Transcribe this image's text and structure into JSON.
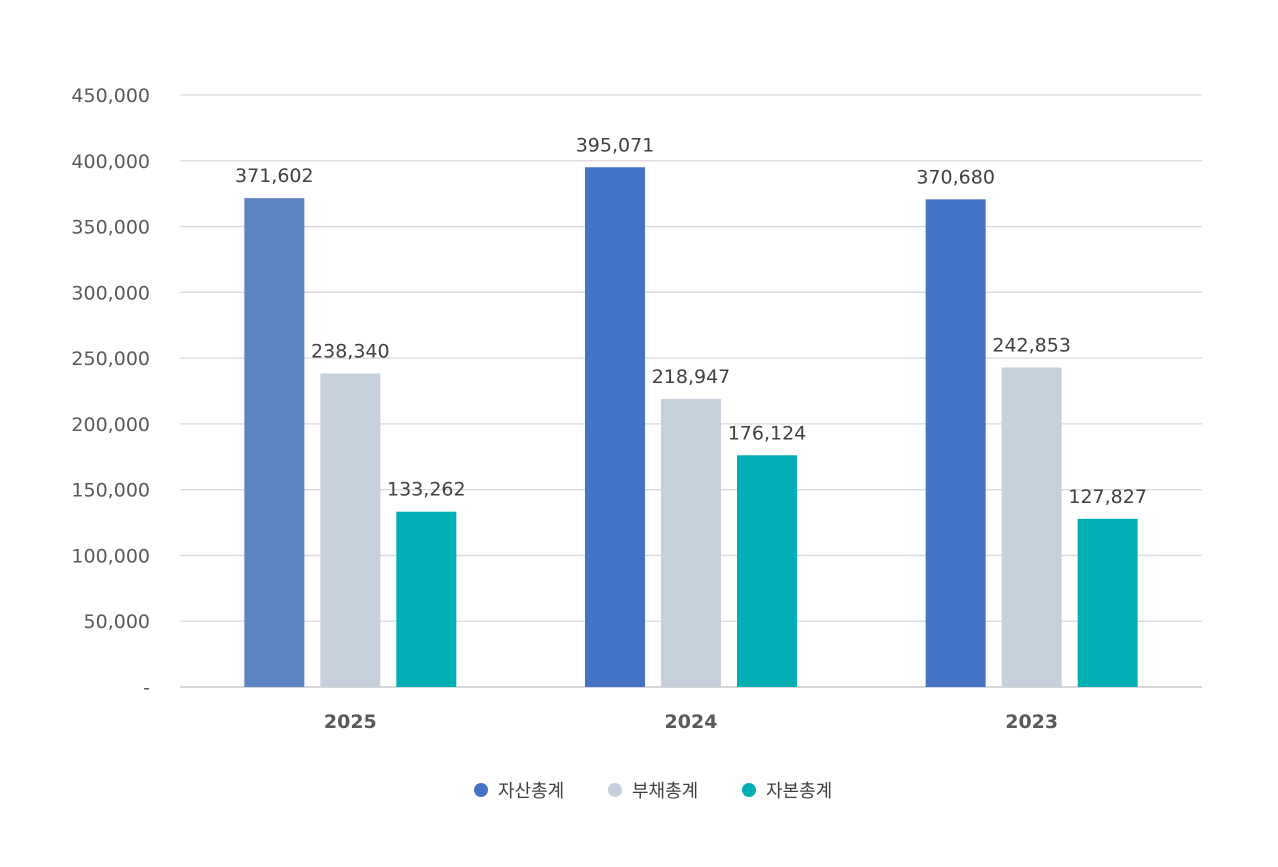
{
  "chart_data": {
    "type": "bar",
    "title": "",
    "xlabel": "",
    "ylabel": "",
    "categories": [
      "2025",
      "2024",
      "2023"
    ],
    "series": [
      {
        "name": "자산총계",
        "color": "#4472c4",
        "values": [
          371602,
          395071,
          370680
        ]
      },
      {
        "name": "부채총계",
        "color": "#c6d0dc",
        "values": [
          238340,
          218947,
          242853
        ]
      },
      {
        "name": "자본총계",
        "color": "#00afb4",
        "values": [
          133262,
          176124,
          127827
        ]
      }
    ],
    "first_bar_color": "#5b84c0",
    "ylim": [
      0,
      450000
    ],
    "yticks": [
      0,
      50000,
      100000,
      150000,
      200000,
      250000,
      300000,
      350000,
      400000,
      450000
    ],
    "ytick_labels": [
      "-",
      "50,000",
      "100,000",
      "150,000",
      "200,000",
      "250,000",
      "300,000",
      "350,000",
      "400,000",
      "450,000"
    ],
    "data_labels": [
      [
        "371,602",
        "395,071",
        "370,680"
      ],
      [
        "238,340",
        "218,947",
        "242,853"
      ],
      [
        "133,262",
        "176,124",
        "127,827"
      ]
    ],
    "grid": true,
    "legend": "bottom"
  }
}
